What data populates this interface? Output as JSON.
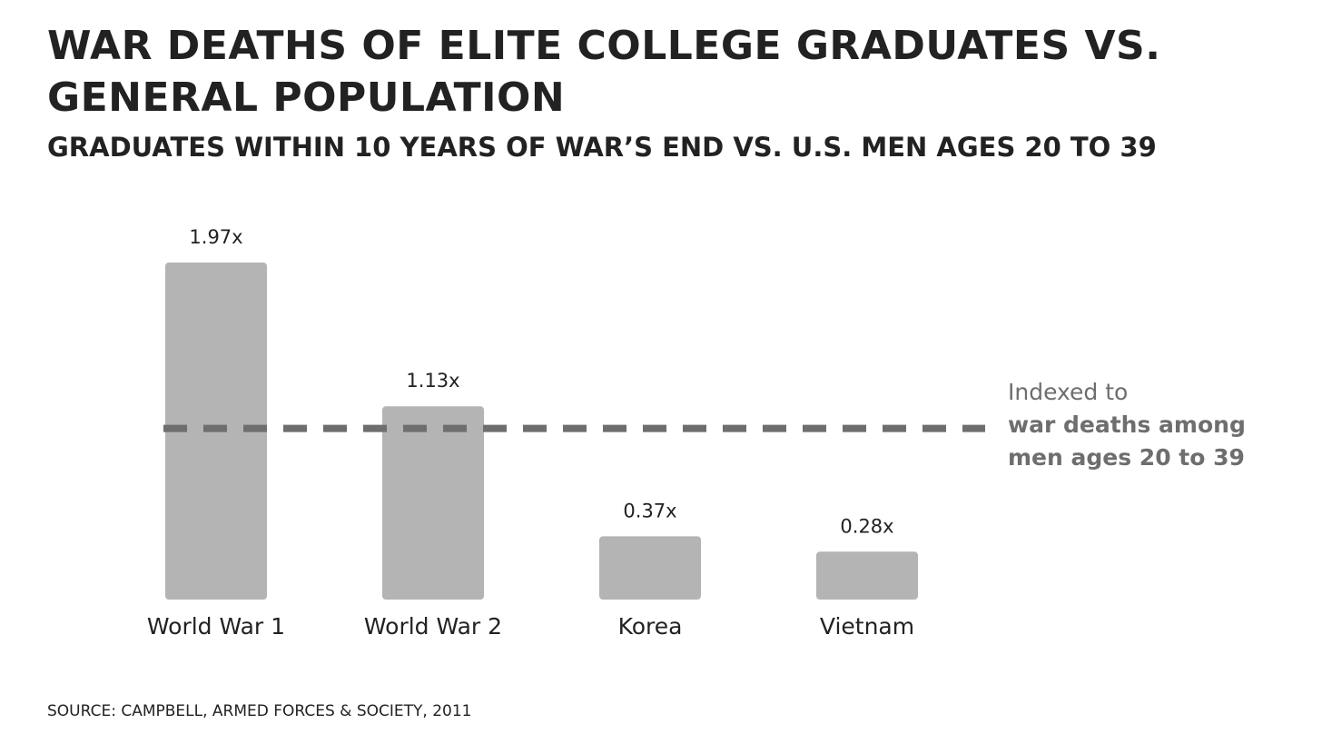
{
  "chart_data": {
    "type": "bar",
    "title": "War Deaths of Elite College Graduates vs. General Population",
    "subtitle": "Graduates within 10 years of war’s end vs. U.S. men ages 20 to 39",
    "categories": [
      "World War 1",
      "World War 2",
      "Korea",
      "Vietnam"
    ],
    "values": [
      1.97,
      1.13,
      0.37,
      0.28
    ],
    "value_labels": [
      "1.97x",
      "1.13x",
      "0.37x",
      "0.28x"
    ],
    "reference_line": {
      "value": 1.0,
      "style": "dashed",
      "label_line1": "Indexed to",
      "label_line2": "war deaths among",
      "label_line3": "men ages 20 to 39"
    },
    "xlabel": "",
    "ylabel": "",
    "ylim": [
      0,
      1.97
    ],
    "grid": false,
    "legend": "none",
    "source": "Source: Campbell, Armed Forces & Society, 2011"
  },
  "colors": {
    "bar": "#b5b4b5",
    "reference_line": "#6e6e6e",
    "text": "#222222",
    "reference_label": "#6e6e6e",
    "background": "#ffffff"
  }
}
